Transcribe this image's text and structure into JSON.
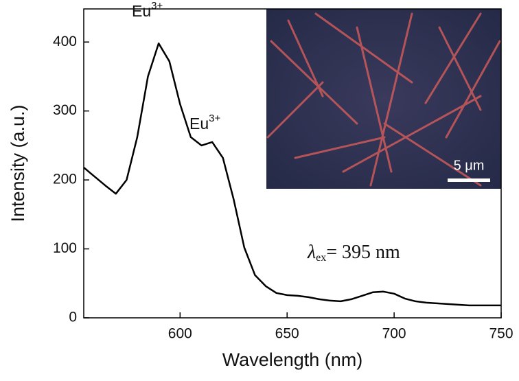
{
  "chart_data": {
    "type": "line",
    "x_label": "Wavelength (nm)",
    "y_label": "Intensity (a.u.)",
    "x": [
      555,
      560,
      565,
      570,
      575,
      580,
      585,
      590,
      595,
      600,
      605,
      610,
      615,
      620,
      625,
      630,
      635,
      640,
      645,
      650,
      655,
      660,
      665,
      670,
      675,
      680,
      685,
      690,
      695,
      700,
      705,
      710,
      715,
      720,
      725,
      730,
      735,
      740,
      745,
      750
    ],
    "series": [
      {
        "color": "#000000",
        "values": [
          218,
          205,
          192,
          180,
          200,
          262,
          350,
          398,
          372,
          310,
          262,
          250,
          255,
          232,
          172,
          102,
          62,
          46,
          36,
          33,
          32,
          30,
          27,
          25,
          24,
          27,
          32,
          37,
          38,
          35,
          28,
          24,
          22,
          21,
          20,
          19,
          18,
          18,
          18,
          18
        ]
      }
    ],
    "xlim": [
      555,
      750
    ],
    "xticks": [
      600,
      650,
      700,
      750
    ],
    "ylim": [
      0,
      448
    ],
    "yticks": [
      0,
      100,
      200,
      300,
      400
    ],
    "annotations": [
      {
        "text": "Eu",
        "sup": "3+"
      },
      {
        "text": "Eu",
        "sup": "3+"
      }
    ],
    "excitation": {
      "symbol": "λ",
      "subscript": "ex",
      "text": "= 395 nm"
    },
    "inset": {
      "scale_bar": "5 μm"
    }
  }
}
